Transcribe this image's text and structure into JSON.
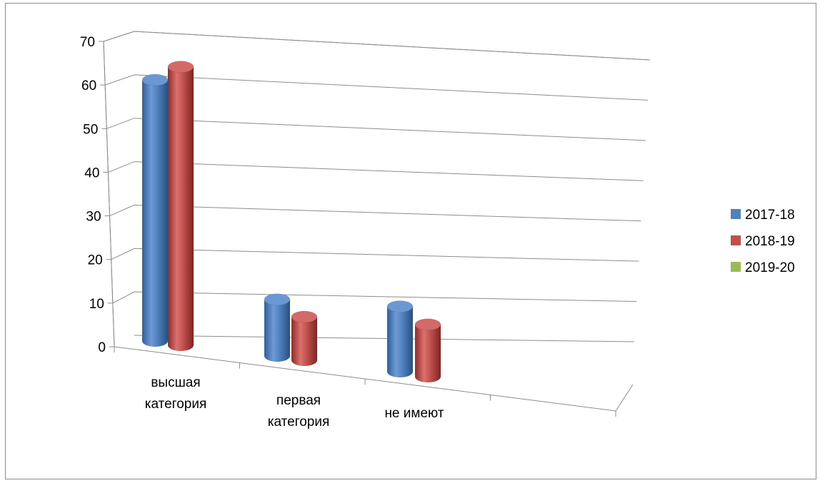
{
  "chart_data": {
    "type": "bar",
    "style": "3d-cylinder",
    "categories": [
      "высшая категория",
      "первая категория",
      "не имеют"
    ],
    "category_lines": [
      [
        "высшая",
        "категория"
      ],
      [
        "первая",
        "категория"
      ],
      [
        "не имеют"
      ]
    ],
    "series": [
      {
        "name": "2017-18",
        "color": "#4f81bd",
        "values": [
          60,
          13,
          15
        ]
      },
      {
        "name": "2018-19",
        "color": "#c0504d",
        "values": [
          64,
          10,
          12
        ]
      },
      {
        "name": "2019-20",
        "color": "#9bbb59",
        "values": [
          0,
          0,
          0
        ]
      }
    ],
    "ylim": [
      0,
      70
    ],
    "yticks": [
      0,
      10,
      20,
      30,
      40,
      50,
      60,
      70
    ],
    "grid": true,
    "legend": "right"
  }
}
